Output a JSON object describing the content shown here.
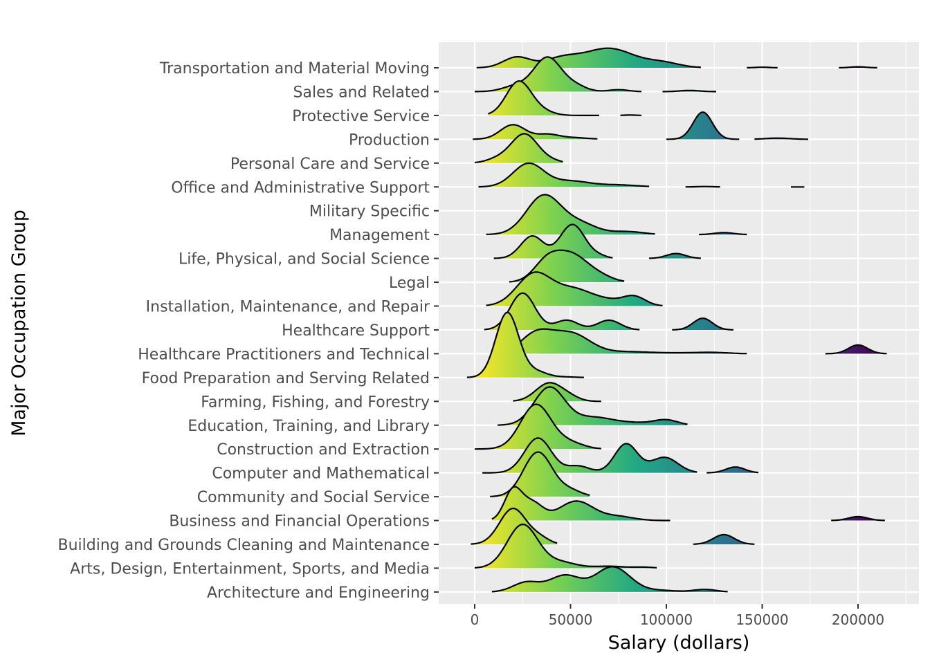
{
  "chart_data": {
    "type": "ridgeline",
    "xlabel": "Salary (dollars)",
    "ylabel": "Major Occupation Group",
    "xlim": [
      -19000,
      231000
    ],
    "x_ticks": [
      0,
      50000,
      100000,
      150000,
      200000
    ],
    "x_tick_labels": [
      "0",
      "50000",
      "100000",
      "150000",
      "200000"
    ],
    "grid": true,
    "color_scale": [
      "#fde725",
      "#7ad151",
      "#22a884",
      "#2a788e",
      "#414487",
      "#440154"
    ],
    "color_range": [
      0,
      210000
    ],
    "categories": [
      "Transportation and Material Moving",
      "Sales and Related",
      "Protective Service",
      "Production",
      "Personal Care and Service",
      "Office and Administrative Support",
      "Military Specific",
      "Management",
      "Life, Physical, and Social Science",
      "Legal",
      "Installation, Maintenance, and Repair",
      "Healthcare Support",
      "Healthcare Practitioners and Technical",
      "Food Preparation and Serving Related",
      "Farming, Fishing, and Forestry",
      "Education, Training, and Library",
      "Construction and Extraction",
      "Computer and Mathematical",
      "Community and Social Service",
      "Business and Financial Operations",
      "Building and Grounds Cleaning and Maintenance",
      "Arts, Design, Entertainment, Sports, and Media",
      "Architecture and Engineering"
    ],
    "series": [
      {
        "name": "Transportation and Material Moving",
        "segments": [
          {
            "start": 1000,
            "end": 118000,
            "peaks": [
              [
                22000,
                7000,
                0.55
              ],
              [
                45000,
                9000,
                0.45
              ],
              [
                70000,
                13000,
                1.0
              ],
              [
                98000,
                9000,
                0.25
              ]
            ]
          },
          {
            "start": 142000,
            "end": 158000,
            "peaks": [
              [
                150000,
                3500,
                0.03
              ]
            ]
          },
          {
            "start": 190000,
            "end": 210000,
            "peaks": [
              [
                200000,
                4000,
                0.05
              ]
            ]
          }
        ]
      },
      {
        "name": "Sales and Related",
        "segments": [
          {
            "start": 0,
            "end": 87000,
            "peaks": [
              [
                22000,
                7000,
                0.3
              ],
              [
                38000,
                7000,
                1.75
              ],
              [
                52000,
                6000,
                0.3
              ],
              [
                75000,
                5000,
                0.1
              ]
            ]
          },
          {
            "start": 98000,
            "end": 126000,
            "peaks": [
              [
                112000,
                5000,
                0.06
              ]
            ]
          }
        ]
      },
      {
        "name": "Protective Service",
        "segments": [
          {
            "start": 7000,
            "end": 65000,
            "peaks": [
              [
                23000,
                6500,
                1.75
              ],
              [
                35000,
                6000,
                0.2
              ]
            ]
          },
          {
            "start": 76000,
            "end": 87000,
            "peaks": [
              [
                81000,
                3000,
                0.02
              ]
            ]
          }
        ]
      },
      {
        "name": "Production",
        "segments": [
          {
            "start": -1000,
            "end": 64000,
            "peaks": [
              [
                20000,
                6500,
                0.75
              ],
              [
                38000,
                6000,
                0.25
              ],
              [
                52000,
                7000,
                0.08
              ]
            ]
          },
          {
            "start": 100000,
            "end": 138000,
            "peaks": [
              [
                119000,
                5000,
                1.4
              ]
            ]
          },
          {
            "start": 146000,
            "end": 174000,
            "peaks": [
              [
                158000,
                6000,
                0.06
              ]
            ]
          }
        ]
      },
      {
        "name": "Personal Care and Service",
        "segments": [
          {
            "start": 0,
            "end": 46000,
            "peaks": [
              [
                12000,
                6000,
                0.2
              ],
              [
                26000,
                7000,
                1.5
              ],
              [
                40000,
                5000,
                0.1
              ]
            ]
          }
        ]
      },
      {
        "name": "Office and Administrative Support",
        "segments": [
          {
            "start": 2000,
            "end": 91000,
            "peaks": [
              [
                28000,
                8000,
                1.2
              ],
              [
                50000,
                10000,
                0.3
              ],
              [
                75000,
                10000,
                0.1
              ]
            ]
          },
          {
            "start": 110000,
            "end": 128000,
            "peaks": [
              [
                120000,
                4000,
                0.02
              ]
            ]
          },
          {
            "start": 165000,
            "end": 172000,
            "peaks": [
              [
                168000,
                2500,
                0.0
              ]
            ]
          }
        ]
      },
      {
        "name": "Military Specific",
        "segments": []
      },
      {
        "name": "Management",
        "segments": [
          {
            "start": 6000,
            "end": 94000,
            "peaks": [
              [
                36000,
                9000,
                2.0
              ],
              [
                55000,
                9000,
                0.55
              ],
              [
                80000,
                8000,
                0.15
              ]
            ]
          },
          {
            "start": 117000,
            "end": 142000,
            "peaks": [
              [
                130000,
                5000,
                0.1
              ]
            ]
          }
        ]
      },
      {
        "name": "Life, Physical, and Social Science",
        "segments": [
          {
            "start": 10000,
            "end": 72000,
            "peaks": [
              [
                30000,
                6000,
                1.15
              ],
              [
                51000,
                6500,
                1.75
              ],
              [
                65000,
                4000,
                0.1
              ]
            ]
          },
          {
            "start": 91000,
            "end": 118000,
            "peaks": [
              [
                105000,
                5000,
                0.25
              ]
            ]
          }
        ]
      },
      {
        "name": "Legal",
        "segments": [
          {
            "start": 18000,
            "end": 78000,
            "peaks": [
              [
                38000,
                7000,
                1.1
              ],
              [
                51000,
                8000,
                1.3
              ],
              [
                65000,
                7000,
                0.3
              ]
            ]
          }
        ]
      },
      {
        "name": "Installation, Maintenance, and Repair",
        "segments": [
          {
            "start": 6000,
            "end": 98000,
            "peaks": [
              [
                31000,
                9000,
                1.65
              ],
              [
                52000,
                10000,
                0.85
              ],
              [
                70000,
                7000,
                0.2
              ],
              [
                83000,
                6000,
                0.5
              ]
            ]
          }
        ]
      },
      {
        "name": "Healthcare Support",
        "segments": [
          {
            "start": 5000,
            "end": 86000,
            "peaks": [
              [
                25000,
                6500,
                1.9
              ],
              [
                48000,
                6000,
                0.5
              ],
              [
                70000,
                6000,
                0.5
              ]
            ]
          },
          {
            "start": 103000,
            "end": 135000,
            "peaks": [
              [
                119000,
                5000,
                0.6
              ]
            ]
          }
        ]
      },
      {
        "name": "Healthcare Practitioners and Technical",
        "segments": [
          {
            "start": 22000,
            "end": 142000,
            "peaks": [
              [
                32000,
                8000,
                1.0
              ],
              [
                50000,
                10000,
                1.05
              ],
              [
                80000,
                12000,
                0.1
              ],
              [
                110000,
                12000,
                0.04
              ],
              [
                125000,
                8000,
                0.05
              ]
            ]
          },
          {
            "start": 183000,
            "end": 215000,
            "peaks": [
              [
                200000,
                5000,
                0.45
              ]
            ]
          }
        ]
      },
      {
        "name": "Food Preparation and Serving Related",
        "segments": [
          {
            "start": -4000,
            "end": 57000,
            "peaks": [
              [
                17000,
                6000,
                3.35
              ],
              [
                32000,
                6000,
                0.3
              ],
              [
                48000,
                5000,
                0.03
              ]
            ]
          }
        ]
      },
      {
        "name": "Farming, Fishing, and Forestry",
        "segments": [
          {
            "start": 20000,
            "end": 66000,
            "peaks": [
              [
                39000,
                7000,
                0.95
              ],
              [
                50000,
                5000,
                0.15
              ]
            ]
          }
        ]
      },
      {
        "name": "Education, Training, and Library",
        "segments": [
          {
            "start": 12000,
            "end": 111000,
            "peaks": [
              [
                39000,
                8000,
                1.95
              ],
              [
                62000,
                10000,
                0.4
              ],
              [
                85000,
                10000,
                0.12
              ],
              [
                100000,
                6000,
                0.25
              ]
            ]
          }
        ]
      },
      {
        "name": "Construction and Extraction",
        "segments": [
          {
            "start": 0,
            "end": 66000,
            "peaks": [
              [
                32000,
                8000,
                2.3
              ],
              [
                50000,
                7000,
                0.3
              ]
            ]
          }
        ]
      },
      {
        "name": "Computer and Mathematical",
        "segments": [
          {
            "start": 4000,
            "end": 116000,
            "peaks": [
              [
                33000,
                7000,
                1.8
              ],
              [
                54000,
                6000,
                0.35
              ],
              [
                79000,
                6000,
                1.5
              ],
              [
                99000,
                7000,
                0.8
              ]
            ]
          },
          {
            "start": 121000,
            "end": 148000,
            "peaks": [
              [
                136000,
                5000,
                0.3
              ]
            ]
          }
        ]
      },
      {
        "name": "Community and Social Service",
        "segments": [
          {
            "start": 8000,
            "end": 60000,
            "peaks": [
              [
                33000,
                7500,
                2.3
              ],
              [
                50000,
                6000,
                0.3
              ]
            ]
          }
        ]
      },
      {
        "name": "Business and Financial Operations",
        "segments": [
          {
            "start": 9000,
            "end": 102000,
            "peaks": [
              [
                20000,
                4500,
                1.55
              ],
              [
                30000,
                5500,
                0.9
              ],
              [
                53000,
                9000,
                1.0
              ],
              [
                75000,
                8000,
                0.2
              ]
            ]
          },
          {
            "start": 186000,
            "end": 214000,
            "peaks": [
              [
                200000,
                5000,
                0.2
              ]
            ]
          }
        ]
      },
      {
        "name": "Building and Grounds Cleaning and Maintenance",
        "segments": [
          {
            "start": -2000,
            "end": 43000,
            "peaks": [
              [
                20000,
                7000,
                1.85
              ],
              [
                34000,
                5000,
                0.3
              ]
            ]
          },
          {
            "start": 114000,
            "end": 146000,
            "peaks": [
              [
                130000,
                5500,
                0.5
              ]
            ]
          }
        ]
      },
      {
        "name": "Arts, Design, Entertainment, Sports, and Media",
        "segments": [
          {
            "start": 0,
            "end": 95000,
            "peaks": [
              [
                25000,
                8000,
                2.25
              ],
              [
                45000,
                8000,
                0.3
              ],
              [
                70000,
                8000,
                0.1
              ],
              [
                88000,
                5000,
                0.05
              ]
            ]
          }
        ]
      },
      {
        "name": "Architecture and Engineering",
        "segments": [
          {
            "start": 9000,
            "end": 132000,
            "peaks": [
              [
                27000,
                7000,
                0.5
              ],
              [
                47000,
                8000,
                0.85
              ],
              [
                72000,
                9000,
                1.3
              ],
              [
                97000,
                8000,
                0.08
              ],
              [
                120000,
                6000,
                0.13
              ]
            ]
          }
        ]
      }
    ]
  }
}
